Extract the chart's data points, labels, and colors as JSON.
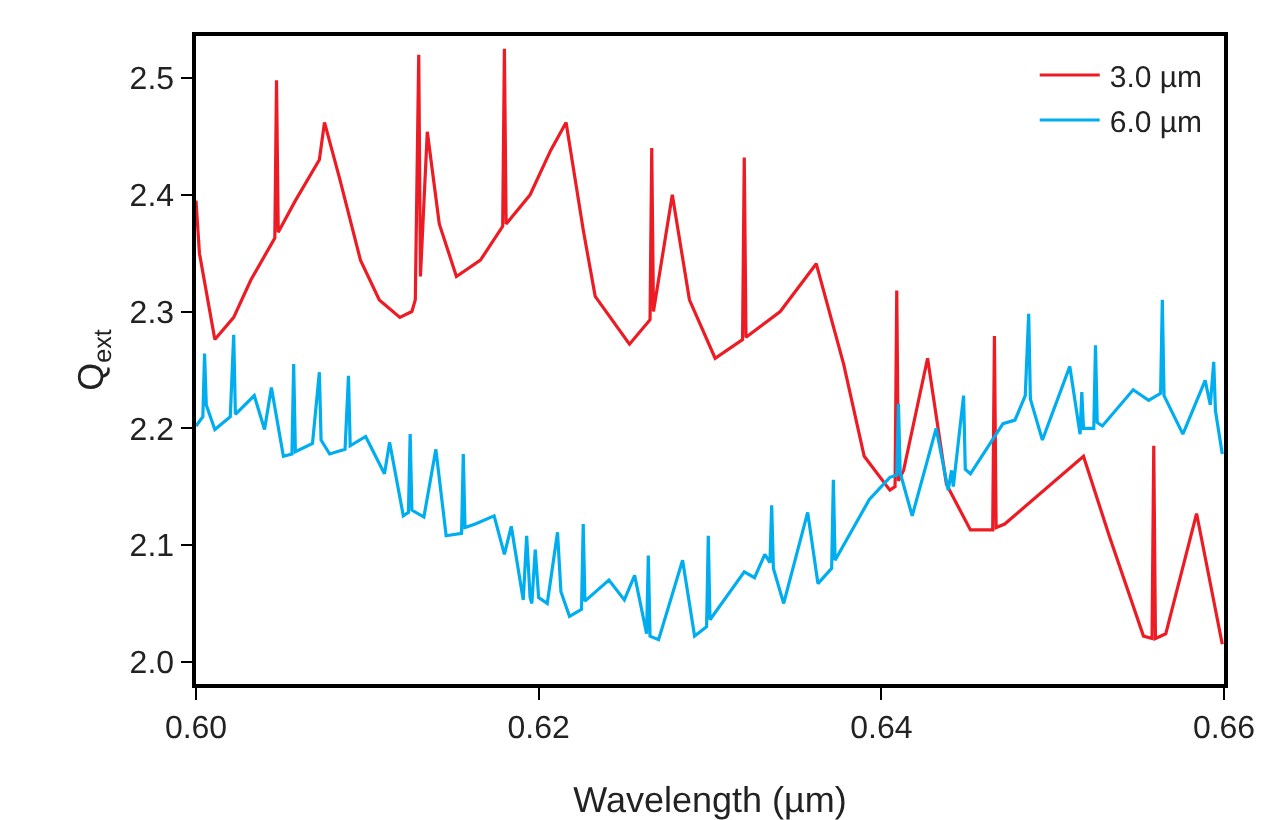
{
  "chart_data": {
    "type": "line",
    "xlabel": "Wavelength (µm)",
    "ylabel": "Q$_{ext}$",
    "xlim": [
      0.6,
      0.66
    ],
    "xticks": [
      {
        "value": 0.6,
        "label": "0.60"
      },
      {
        "value": 0.62,
        "label": "0.62"
      },
      {
        "value": 0.64,
        "label": "0.64"
      },
      {
        "value": 0.66,
        "label": "0.66"
      }
    ],
    "ylim": [
      1.981,
      2.536
    ],
    "yticks": [
      {
        "value": 2.0,
        "label": "2.0"
      },
      {
        "value": 2.1,
        "label": "2.1"
      },
      {
        "value": 2.2,
        "label": "2.2"
      },
      {
        "value": 2.3,
        "label": "2.3"
      },
      {
        "value": 2.4,
        "label": "2.4"
      },
      {
        "value": 2.5,
        "label": "2.5"
      }
    ],
    "grid": false,
    "legend": "top right",
    "marker": "none",
    "line_style": "solid",
    "series": [
      {
        "name": "3.0 µm",
        "color": "#ed1c24",
        "x": [
          0.6,
          0.6002,
          0.6011,
          0.6022,
          0.6032,
          0.6046,
          0.6047,
          0.6048,
          0.6058,
          0.6072,
          0.6075,
          0.6084,
          0.6096,
          0.6107,
          0.6119,
          0.6126,
          0.6128,
          0.613,
          0.6131,
          0.6135,
          0.6142,
          0.6152,
          0.6166,
          0.6179,
          0.618,
          0.6181,
          0.6195,
          0.6207,
          0.6216,
          0.6226,
          0.6233,
          0.6253,
          0.6265,
          0.6266,
          0.6267,
          0.6278,
          0.6288,
          0.6303,
          0.6319,
          0.632,
          0.6321,
          0.6341,
          0.6362,
          0.6378,
          0.639,
          0.6405,
          0.6408,
          0.6409,
          0.641,
          0.6413,
          0.6427,
          0.6438,
          0.6452,
          0.6465,
          0.6466,
          0.6467,
          0.6472,
          0.6518,
          0.6533,
          0.6553,
          0.6558,
          0.6559,
          0.656,
          0.6566,
          0.6584,
          0.6599
        ],
        "values": [
          2.395,
          2.35,
          2.276,
          2.295,
          2.327,
          2.363,
          2.498,
          2.368,
          2.395,
          2.43,
          2.462,
          2.413,
          2.344,
          2.31,
          2.295,
          2.3,
          2.31,
          2.52,
          2.33,
          2.454,
          2.375,
          2.33,
          2.344,
          2.373,
          2.525,
          2.375,
          2.4,
          2.438,
          2.462,
          2.37,
          2.313,
          2.272,
          2.293,
          2.44,
          2.3,
          2.4,
          2.31,
          2.26,
          2.276,
          2.432,
          2.278,
          2.3,
          2.341,
          2.255,
          2.176,
          2.147,
          2.15,
          2.318,
          2.155,
          2.164,
          2.26,
          2.152,
          2.113,
          2.113,
          2.279,
          2.115,
          2.118,
          2.176,
          2.108,
          2.022,
          2.02,
          2.185,
          2.02,
          2.024,
          2.127,
          2.015
        ]
      },
      {
        "name": "6.0 µm",
        "color": "#00aeef",
        "x": [
          0.6,
          0.6004,
          0.6005,
          0.6006,
          0.6011,
          0.602,
          0.6022,
          0.6023,
          0.6034,
          0.604,
          0.6044,
          0.6051,
          0.6056,
          0.6057,
          0.6058,
          0.6068,
          0.6072,
          0.6073,
          0.6078,
          0.6087,
          0.6089,
          0.609,
          0.6099,
          0.611,
          0.6113,
          0.6121,
          0.6124,
          0.6125,
          0.6126,
          0.6133,
          0.614,
          0.6146,
          0.6155,
          0.6156,
          0.6157,
          0.6163,
          0.6174,
          0.618,
          0.6184,
          0.6191,
          0.6193,
          0.6195,
          0.6196,
          0.6198,
          0.62,
          0.6205,
          0.6211,
          0.6213,
          0.6218,
          0.6225,
          0.6226,
          0.6227,
          0.6241,
          0.625,
          0.6256,
          0.6263,
          0.6264,
          0.6265,
          0.627,
          0.6284,
          0.6291,
          0.6298,
          0.6299,
          0.63,
          0.632,
          0.6326,
          0.6332,
          0.6335,
          0.6336,
          0.6337,
          0.6343,
          0.6357,
          0.6363,
          0.6371,
          0.6372,
          0.6373,
          0.6393,
          0.6405,
          0.6409,
          0.641,
          0.6411,
          0.6418,
          0.6432,
          0.6439,
          0.6441,
          0.6442,
          0.6448,
          0.6449,
          0.6452,
          0.6471,
          0.6478,
          0.6484,
          0.6486,
          0.6487,
          0.6494,
          0.651,
          0.6516,
          0.6517,
          0.6518,
          0.6524,
          0.6525,
          0.6526,
          0.6529,
          0.6547,
          0.6556,
          0.6563,
          0.6564,
          0.6565,
          0.6576,
          0.6589,
          0.6592,
          0.6594,
          0.6595,
          0.6599
        ],
        "values": [
          2.202,
          2.21,
          2.264,
          2.22,
          2.199,
          2.21,
          2.28,
          2.212,
          2.228,
          2.199,
          2.235,
          2.176,
          2.178,
          2.255,
          2.18,
          2.187,
          2.248,
          2.19,
          2.178,
          2.182,
          2.245,
          2.185,
          2.193,
          2.161,
          2.188,
          2.125,
          2.128,
          2.195,
          2.13,
          2.124,
          2.182,
          2.108,
          2.11,
          2.178,
          2.115,
          2.118,
          2.125,
          2.092,
          2.116,
          2.053,
          2.108,
          2.055,
          2.05,
          2.096,
          2.055,
          2.05,
          2.111,
          2.06,
          2.039,
          2.045,
          2.118,
          2.052,
          2.07,
          2.053,
          2.074,
          2.024,
          2.091,
          2.022,
          2.019,
          2.087,
          2.022,
          2.03,
          2.108,
          2.036,
          2.077,
          2.072,
          2.092,
          2.085,
          2.134,
          2.08,
          2.05,
          2.128,
          2.067,
          2.08,
          2.156,
          2.087,
          2.139,
          2.158,
          2.16,
          2.221,
          2.162,
          2.125,
          2.2,
          2.147,
          2.164,
          2.15,
          2.228,
          2.165,
          2.161,
          2.204,
          2.207,
          2.228,
          2.298,
          2.225,
          2.19,
          2.253,
          2.195,
          2.231,
          2.2,
          2.2,
          2.271,
          2.205,
          2.202,
          2.233,
          2.224,
          2.23,
          2.31,
          2.228,
          2.195,
          2.241,
          2.22,
          2.257,
          2.215,
          2.178
        ]
      }
    ]
  }
}
